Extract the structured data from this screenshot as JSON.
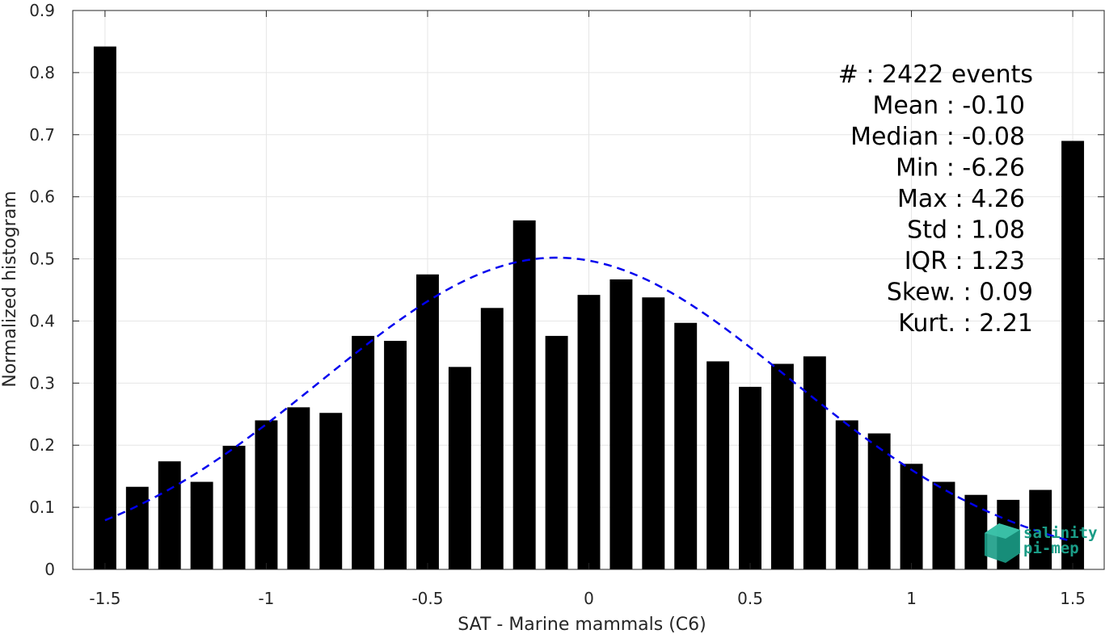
{
  "chart_data": {
    "type": "bar",
    "xlabel": "SAT - Marine mammals (C6)",
    "ylabel": "Normalized histogram",
    "xlim": [
      -1.6,
      1.6
    ],
    "ylim": [
      0,
      0.9
    ],
    "grid": true,
    "x_ticks": [
      "-1.5",
      "-1",
      "-0.5",
      "0",
      "0.5",
      "1",
      "1.5"
    ],
    "y_ticks": [
      "0",
      "0.1",
      "0.2",
      "0.3",
      "0.4",
      "0.5",
      "0.6",
      "0.7",
      "0.8",
      "0.9"
    ],
    "bar_color": "#000000",
    "bin_width": 0.1,
    "x": [
      -1.5,
      -1.4,
      -1.3,
      -1.2,
      -1.1,
      -1.0,
      -0.9,
      -0.8,
      -0.7,
      -0.6,
      -0.5,
      -0.4,
      -0.3,
      -0.2,
      -0.1,
      0.0,
      0.1,
      0.2,
      0.3,
      0.4,
      0.5,
      0.6,
      0.7,
      0.8,
      0.9,
      1.0,
      1.1,
      1.2,
      1.3,
      1.4,
      1.5
    ],
    "values": [
      0.842,
      0.133,
      0.174,
      0.141,
      0.199,
      0.24,
      0.261,
      0.252,
      0.376,
      0.368,
      0.475,
      0.326,
      0.421,
      0.562,
      0.376,
      0.442,
      0.467,
      0.438,
      0.397,
      0.335,
      0.294,
      0.331,
      0.343,
      0.24,
      0.219,
      0.17,
      0.141,
      0.12,
      0.112,
      0.128,
      0.69
    ],
    "fit_curve": {
      "style": "dashed",
      "color": "#0000ee",
      "mean": -0.1,
      "std": 1.08,
      "peak": 0.502,
      "x_range": [
        -1.5,
        1.5
      ]
    },
    "stats": [
      {
        "label": "#  : 2422 events"
      },
      {
        "label": "Mean : -0.10"
      },
      {
        "label": "Median : -0.08"
      },
      {
        "label": "Min : -6.26"
      },
      {
        "label": "Max : 4.26"
      },
      {
        "label": "Std : 1.08"
      },
      {
        "label": "IQR : 1.23"
      },
      {
        "label": "Skew. : 0.09"
      },
      {
        "label": "Kurt. : 2.21"
      }
    ]
  },
  "logo": {
    "line1": "salinity",
    "line2": "pi-mep",
    "color": "#1a9c86"
  }
}
